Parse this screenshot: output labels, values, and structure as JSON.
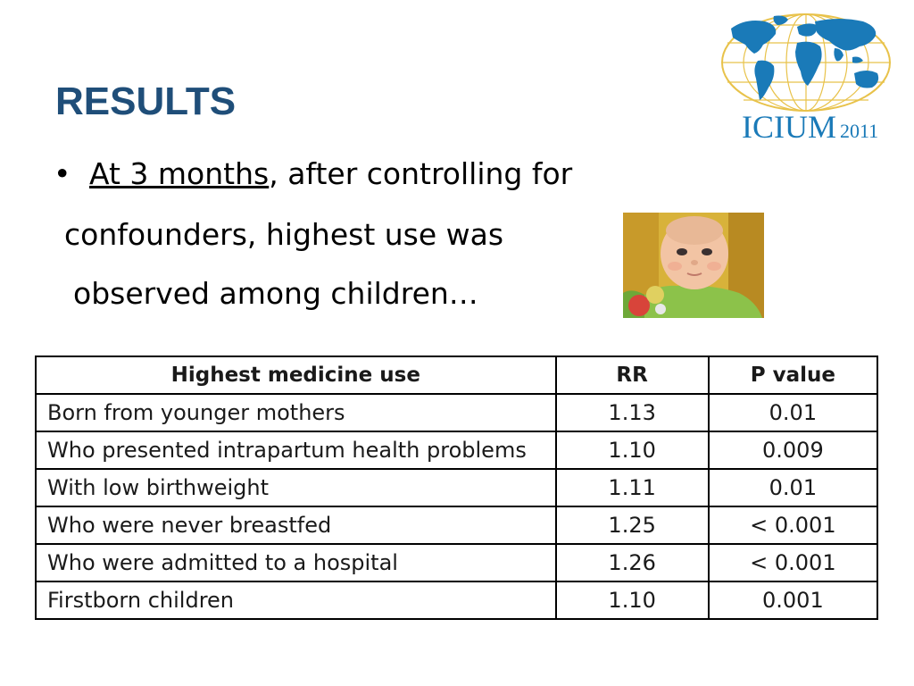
{
  "slide": {
    "title": "RESULTS",
    "bullet_symbol": "•",
    "lead_underlined": "At 3 months",
    "lead_rest": ", after controlling for",
    "line2": "confounders, highest use was",
    "line3": "observed among children…"
  },
  "logo": {
    "name": "ICIUM",
    "year": "2011",
    "color": "#1a7ab8",
    "globe_color": "#1a7ab8",
    "grid_color": "#e8c24a"
  },
  "photo": {
    "subject": "baby-photo"
  },
  "table": {
    "headers": [
      "Highest medicine use",
      "RR",
      "P value"
    ],
    "rows": [
      {
        "label": "Born from younger mothers",
        "rr": "1.13",
        "p": "0.01"
      },
      {
        "label": "Who presented intrapartum health problems",
        "rr": "1.10",
        "p": "0.009"
      },
      {
        "label": "With low birthweight",
        "rr": "1.11",
        "p": "0.01"
      },
      {
        "label": "Who were never breastfed",
        "rr": "1.25",
        "p": "< 0.001"
      },
      {
        "label": "Who were admitted to a hospital",
        "rr": "1.26",
        "p": "< 0.001"
      },
      {
        "label": "Firstborn children",
        "rr": "1.10",
        "p": "0.001"
      }
    ]
  },
  "colors": {
    "title": "#1f4e79",
    "text": "#000000"
  }
}
